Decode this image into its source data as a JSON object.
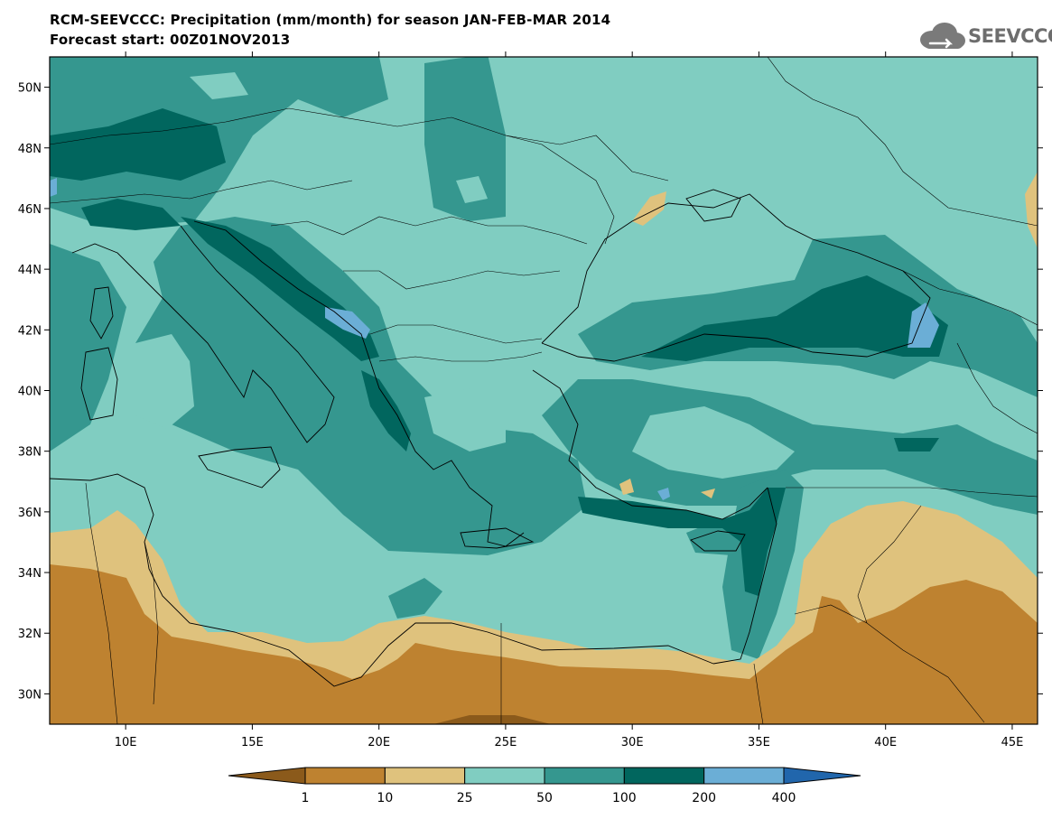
{
  "header": {
    "title_line1": "RCM-SEEVCCC: Precipitation (mm/month) for season JAN-FEB-MAR 2014",
    "title_line2": "Forecast start: 00Z01NOV2013"
  },
  "logo": {
    "text": "SEEVCCC",
    "icon": "cloud-logo-icon"
  },
  "map": {
    "lon_range": [
      7,
      46
    ],
    "lat_range": [
      29,
      51
    ],
    "lat_ticks": [
      "30N",
      "32N",
      "34N",
      "36N",
      "38N",
      "40N",
      "42N",
      "44N",
      "46N",
      "48N",
      "50N"
    ],
    "lon_ticks": [
      "10E",
      "15E",
      "20E",
      "25E",
      "30E",
      "35E",
      "40E",
      "45E"
    ]
  },
  "colorbar": {
    "labels": [
      "1",
      "10",
      "25",
      "50",
      "100",
      "200",
      "400"
    ],
    "colors": [
      "#8b5a1b",
      "#be8230",
      "#dfc27d",
      "#80cdc1",
      "#35978f",
      "#01665e",
      "#6baed6",
      "#2166ac"
    ]
  },
  "colors": {
    "sea_default": "#80cdc1",
    "wet": "#35978f",
    "very_wet": "#01665e",
    "extreme": "#6baed6",
    "dry": "#dfc27d",
    "very_dry": "#be8230",
    "driest": "#8b5a1b"
  }
}
